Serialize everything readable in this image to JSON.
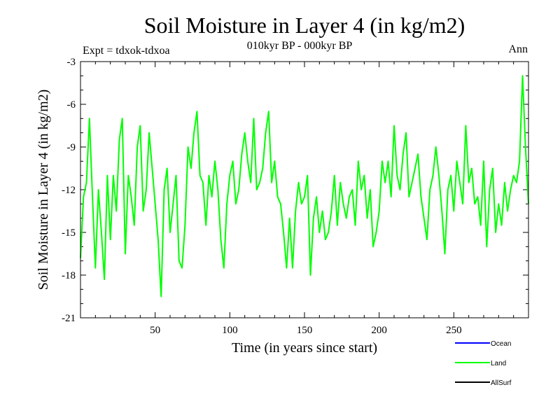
{
  "chart_data": {
    "type": "line",
    "title": "Soil Moisture in Layer 4 (in kg/m2)",
    "subtitle": "010kyr BP - 000kyr BP",
    "annotation_left": "Expt = tdxok-tdxoa",
    "annotation_right": "Ann",
    "xlabel": "Time (in years since start)",
    "ylabel": "Soil Moisture in Layer 4 (in kg/m2)",
    "xlim": [
      0,
      300
    ],
    "ylim": [
      -21,
      -3
    ],
    "x_ticks": [
      50,
      100,
      150,
      200,
      250
    ],
    "y_ticks": [
      -3,
      -6,
      -9,
      -12,
      -15,
      -18,
      -21
    ],
    "grid": false,
    "legend_position": "bottom-right",
    "series": [
      {
        "name": "Ocean",
        "color": "#0000ff",
        "x": [],
        "y": []
      },
      {
        "name": "Land",
        "color": "#00ff00",
        "x": [
          0,
          2,
          4,
          6,
          8,
          10,
          12,
          14,
          16,
          18,
          20,
          22,
          24,
          26,
          28,
          30,
          32,
          34,
          36,
          38,
          40,
          42,
          44,
          46,
          48,
          50,
          52,
          54,
          56,
          58,
          60,
          62,
          64,
          66,
          68,
          70,
          72,
          74,
          76,
          78,
          80,
          82,
          84,
          86,
          88,
          90,
          92,
          94,
          96,
          98,
          100,
          102,
          104,
          106,
          108,
          110,
          112,
          114,
          116,
          118,
          120,
          122,
          124,
          126,
          128,
          130,
          132,
          134,
          136,
          138,
          140,
          142,
          144,
          146,
          148,
          150,
          152,
          154,
          156,
          158,
          160,
          162,
          164,
          166,
          168,
          170,
          172,
          174,
          176,
          178,
          180,
          182,
          184,
          186,
          188,
          190,
          192,
          194,
          196,
          198,
          200,
          202,
          204,
          206,
          208,
          210,
          212,
          214,
          216,
          218,
          220,
          222,
          224,
          226,
          228,
          230,
          232,
          234,
          236,
          238,
          240,
          242,
          244,
          246,
          248,
          250,
          252,
          254,
          256,
          258,
          260,
          262,
          264,
          266,
          268,
          270,
          272,
          274,
          276,
          278,
          280,
          282,
          284,
          286,
          288,
          290,
          292,
          294,
          296,
          298,
          300
        ],
        "y": [
          -16.8,
          -12.5,
          -11.5,
          -7.0,
          -12.5,
          -17.5,
          -12.0,
          -15.0,
          -18.3,
          -11.0,
          -15.5,
          -11.0,
          -13.5,
          -8.5,
          -7.0,
          -16.5,
          -11.0,
          -12.5,
          -14.5,
          -9.0,
          -7.5,
          -13.5,
          -12.0,
          -8.0,
          -10.5,
          -13.0,
          -15.5,
          -19.5,
          -12.0,
          -10.5,
          -15.0,
          -13.0,
          -11.0,
          -17.0,
          -17.5,
          -14.5,
          -9.0,
          -10.5,
          -8.0,
          -6.5,
          -11.0,
          -11.5,
          -14.5,
          -11.0,
          -12.5,
          -10.0,
          -12.0,
          -15.5,
          -17.5,
          -13.0,
          -11.0,
          -10.0,
          -13.0,
          -12.0,
          -9.5,
          -8.0,
          -10.0,
          -11.5,
          -7.0,
          -12.0,
          -11.5,
          -10.5,
          -8.0,
          -6.5,
          -11.5,
          -10.0,
          -12.5,
          -13.0,
          -15.0,
          -17.5,
          -14.0,
          -17.5,
          -13.5,
          -11.5,
          -13.0,
          -12.5,
          -11.0,
          -18.0,
          -14.0,
          -12.5,
          -15.0,
          -13.5,
          -15.5,
          -15.0,
          -13.5,
          -11.0,
          -14.5,
          -11.5,
          -13.0,
          -14.0,
          -12.5,
          -12.0,
          -14.5,
          -10.0,
          -12.0,
          -11.0,
          -14.0,
          -12.0,
          -16.0,
          -15.0,
          -13.5,
          -10.0,
          -11.5,
          -10.0,
          -12.5,
          -7.5,
          -11.0,
          -12.0,
          -9.5,
          -8.0,
          -12.5,
          -11.5,
          -10.5,
          -9.5,
          -12.5,
          -14.0,
          -15.5,
          -12.0,
          -11.0,
          -9.0,
          -11.0,
          -13.5,
          -16.5,
          -12.0,
          -11.0,
          -13.5,
          -10.0,
          -11.5,
          -13.0,
          -7.5,
          -11.5,
          -10.5,
          -13.0,
          -12.5,
          -14.5,
          -10.0,
          -16.0,
          -12.0,
          -10.5,
          -15.0,
          -13.0,
          -14.5,
          -11.5,
          -13.5,
          -12.0,
          -11.0,
          -11.5,
          -10.0,
          -4.0,
          -9.0,
          -13.0
        ]
      },
      {
        "name": "AllSurf",
        "color": "#000000",
        "x": [],
        "y": []
      }
    ]
  }
}
